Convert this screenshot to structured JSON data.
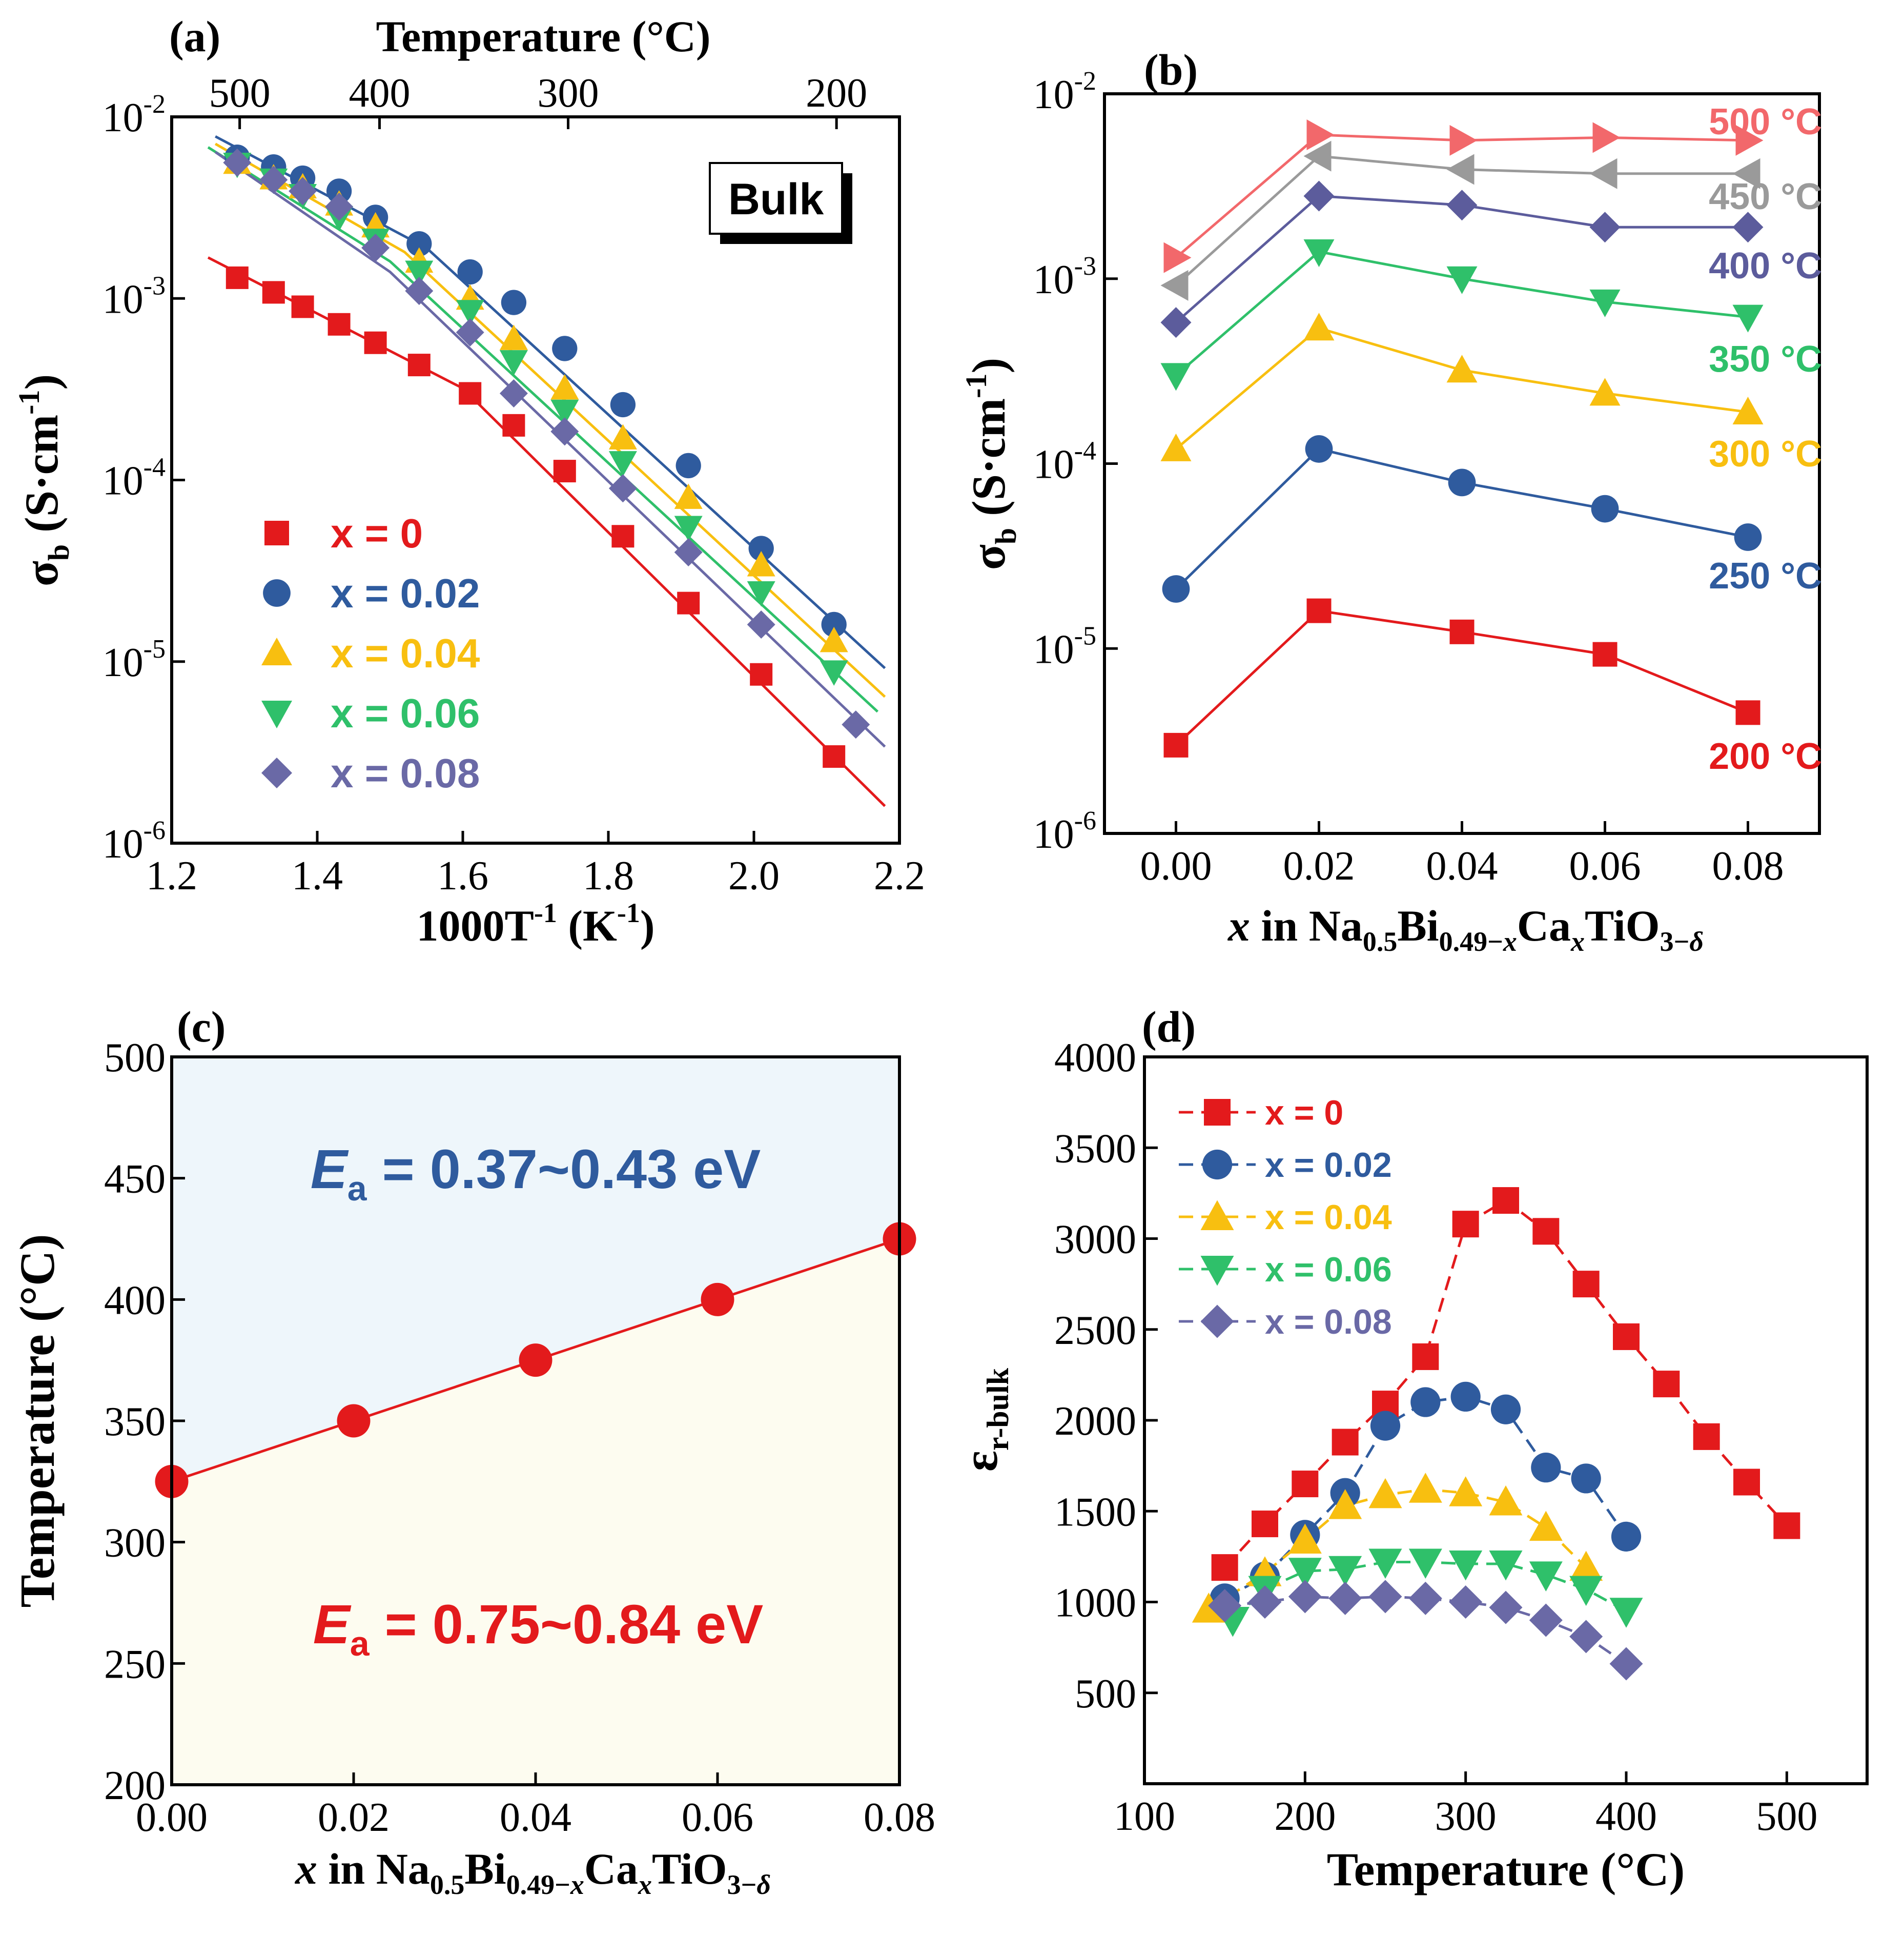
{
  "colors": {
    "x0": "#e31a1c",
    "x002": "#2f5b9e",
    "x004": "#f8bf10",
    "x006": "#2fc06a",
    "x008": "#6a69a6",
    "t500": "#f2686b",
    "t450": "#9a9a9a",
    "t400": "#5c5c9c",
    "t350": "#2fc06a",
    "t300": "#f8bf10",
    "t250": "#2f5b9e",
    "t200": "#e31a1c",
    "region_top": "#eef6fb",
    "region_bottom": "#fdfcf0",
    "ea_top": "#2f5b9e",
    "ea_bottom": "#e31a1c",
    "axis": "#000000"
  },
  "chart_data": [
    {
      "panel": "(a)",
      "type": "scatter",
      "xlabel": "1000T",
      "xlabel_sup": "-1",
      "xlabel_tail": " (K",
      "xlabel_sup2": "-1",
      "xlabel_close": ")",
      "ylabel": "σ",
      "ylabel_sub": "b",
      "ylabel_tail": " (S·cm",
      "ylabel_sup": "-1",
      "ylabel_close": ")",
      "top_axis_title": "Temperature (°C)",
      "top_ticks": [
        500,
        400,
        300,
        200
      ],
      "xlim": [
        1.2,
        2.2
      ],
      "xticks": [
        "1.2",
        "1.4",
        "1.6",
        "1.8",
        "2.0",
        "2.2"
      ],
      "yscale": "log",
      "ylim_exp": [
        -6,
        -2
      ],
      "yticks_exp": [
        "-6",
        "-5",
        "-4",
        "-3",
        "-2"
      ],
      "inset_label": "Bulk",
      "series": [
        {
          "name": "x = 0",
          "marker": "square",
          "color_key": "x0",
          "x": [
            1.29,
            1.34,
            1.38,
            1.43,
            1.48,
            1.54,
            1.61,
            1.67,
            1.74,
            1.82,
            1.91,
            2.01,
            2.11
          ],
          "y": [
            0.0013,
            0.00108,
            0.0009,
            0.00072,
            0.00057,
            0.00043,
            0.0003,
            0.0002,
            0.000112,
            4.9e-05,
            2.1e-05,
            8.5e-06,
            3e-06
          ],
          "fit_x": [
            1.25,
            1.6,
            2.18
          ],
          "fit_y": [
            0.00168,
            0.00032,
            1.6e-06
          ]
        },
        {
          "name": "x = 0.02",
          "marker": "circle",
          "color_key": "x002",
          "x": [
            1.29,
            1.34,
            1.38,
            1.43,
            1.48,
            1.54,
            1.61,
            1.67,
            1.74,
            1.82,
            1.91,
            2.01,
            2.11
          ],
          "y": [
            0.006,
            0.0053,
            0.0046,
            0.0039,
            0.0028,
            0.002,
            0.0014,
            0.00095,
            0.00053,
            0.00026,
            0.00012,
            4.2e-05,
            1.6e-05
          ],
          "fit_x": [
            1.26,
            1.55,
            2.18
          ],
          "fit_y": [
            0.0078,
            0.0019,
            9.2e-06
          ]
        },
        {
          "name": "x = 0.04",
          "marker": "triangle-up",
          "color_key": "x004",
          "x": [
            1.29,
            1.34,
            1.38,
            1.43,
            1.48,
            1.54,
            1.61,
            1.67,
            1.74,
            1.82,
            1.91,
            2.01,
            2.11
          ],
          "y": [
            0.0056,
            0.0046,
            0.0041,
            0.0033,
            0.0025,
            0.0016,
            0.001,
            0.0006,
            0.00032,
            0.00017,
            8e-05,
            3.4e-05,
            1.3e-05
          ],
          "fit_x": [
            1.26,
            1.52,
            2.18
          ],
          "fit_y": [
            0.0071,
            0.0018,
            6.4e-06
          ]
        },
        {
          "name": "x = 0.06",
          "marker": "triangle-down",
          "color_key": "x006",
          "x": [
            1.29,
            1.34,
            1.38,
            1.43,
            1.48,
            1.54,
            1.61,
            1.67,
            1.74,
            1.82,
            1.91,
            2.01,
            2.11
          ],
          "y": [
            0.0055,
            0.0045,
            0.0037,
            0.0028,
            0.0021,
            0.0014,
            0.00085,
            0.00045,
            0.00024,
            0.000125,
            5.5e-05,
            2.4e-05,
            8.8e-06
          ],
          "fit_x": [
            1.25,
            1.5,
            2.17
          ],
          "fit_y": [
            0.0068,
            0.0016,
            5.3e-06
          ]
        },
        {
          "name": "x = 0.08",
          "marker": "diamond",
          "color_key": "x008",
          "x": [
            1.29,
            1.34,
            1.38,
            1.43,
            1.48,
            1.54,
            1.61,
            1.67,
            1.74,
            1.82,
            1.91,
            2.01,
            2.14
          ],
          "y": [
            0.0056,
            0.0045,
            0.0039,
            0.0032,
            0.0019,
            0.0011,
            0.00065,
            0.0003,
            0.000185,
            9e-05,
            4e-05,
            1.6e-05,
            4.5e-06
          ],
          "fit_x": [
            1.26,
            1.5,
            2.18
          ],
          "fit_y": [
            0.0064,
            0.0014,
            3.4e-06
          ]
        }
      ]
    },
    {
      "panel": "(b)",
      "type": "line",
      "ylabel": "σ",
      "ylabel_sub": "b",
      "ylabel_tail": " (S·cm",
      "ylabel_sup": "-1",
      "ylabel_close": ")",
      "x": [
        0,
        0.02,
        0.04,
        0.06,
        0.08
      ],
      "xticks": [
        "0.00",
        "0.02",
        "0.04",
        "0.06",
        "0.08"
      ],
      "xlim": [
        -0.01,
        0.09
      ],
      "yscale": "log",
      "ylim_exp": [
        -6,
        -2
      ],
      "yticks_exp": [
        "-6",
        "-5",
        "-4",
        "-3",
        "-2"
      ],
      "series": [
        {
          "name": "500 °C",
          "marker": "triangle-right",
          "color_key": "t500",
          "values": [
            0.0013,
            0.006,
            0.0056,
            0.0058,
            0.0056
          ]
        },
        {
          "name": "450 °C",
          "marker": "triangle-left",
          "color_key": "t450",
          "values": [
            0.00092,
            0.0046,
            0.0039,
            0.0037,
            0.0037
          ]
        },
        {
          "name": "400 °C",
          "marker": "diamond",
          "color_key": "t400",
          "values": [
            0.00058,
            0.0028,
            0.0025,
            0.0019,
            0.0019
          ]
        },
        {
          "name": "350 °C",
          "marker": "triangle-down",
          "color_key": "t350",
          "values": [
            0.0003,
            0.0014,
            0.001,
            0.00075,
            0.00062
          ]
        },
        {
          "name": "300 °C",
          "marker": "triangle-up",
          "color_key": "t300",
          "values": [
            0.00012,
            0.00054,
            0.00032,
            0.00024,
            0.00019
          ]
        },
        {
          "name": "250 °C",
          "marker": "circle",
          "color_key": "t250",
          "values": [
            2.1e-05,
            0.00012,
            7.9e-05,
            5.7e-05,
            4e-05
          ]
        },
        {
          "name": "200 °C",
          "marker": "square",
          "color_key": "t200",
          "values": [
            3e-06,
            1.6e-05,
            1.23e-05,
            9.3e-06,
            4.5e-06
          ]
        }
      ]
    },
    {
      "panel": "(c)",
      "type": "line",
      "ylabel": "Temperature (°C)",
      "xlim": [
        0,
        0.08
      ],
      "xticks": [
        "0.00",
        "0.02",
        "0.04",
        "0.06",
        "0.08"
      ],
      "ylim": [
        200,
        500
      ],
      "yticks": [
        "200",
        "250",
        "300",
        "350",
        "400",
        "450",
        "500"
      ],
      "x": [
        0,
        0.02,
        0.04,
        0.06,
        0.08
      ],
      "values": [
        325,
        350,
        375,
        400,
        425
      ],
      "fit_line": [
        325,
        425
      ],
      "ea_top": {
        "sym": "E",
        "sub": "a",
        "text": " = 0.37~0.43 eV"
      },
      "ea_bottom": {
        "sym": "E",
        "sub": "a",
        "text": " = 0.75~0.84 eV"
      }
    },
    {
      "panel": "(d)",
      "type": "line",
      "xlabel": "Temperature (°C)",
      "ylabel": "ε",
      "ylabel_sub": "r-bulk",
      "xlim": [
        100,
        550
      ],
      "xticks": [
        "100",
        "200",
        "300",
        "400",
        "500"
      ],
      "ylim": [
        0,
        4000
      ],
      "yticks": [
        "500",
        "1000",
        "1500",
        "2000",
        "2500",
        "3000",
        "3500",
        "4000"
      ],
      "series": [
        {
          "name": "x = 0",
          "marker": "square",
          "color_key": "x0",
          "x": [
            150,
            175,
            200,
            225,
            250,
            275,
            300,
            325,
            350,
            375,
            400,
            425,
            450,
            475,
            500
          ],
          "y": [
            1190,
            1430,
            1650,
            1880,
            2090,
            2350,
            3080,
            3210,
            3040,
            2750,
            2460,
            2200,
            1910,
            1660,
            1420
          ]
        },
        {
          "name": "x = 0.02",
          "marker": "circle",
          "color_key": "x002",
          "x": [
            150,
            175,
            200,
            225,
            250,
            275,
            300,
            325,
            350,
            375,
            400
          ],
          "y": [
            1020,
            1140,
            1370,
            1600,
            1970,
            2100,
            2130,
            2060,
            1740,
            1680,
            1360
          ]
        },
        {
          "name": "x = 0.04",
          "marker": "triangle-up",
          "color_key": "x004",
          "x": [
            140,
            175,
            200,
            225,
            250,
            275,
            300,
            325,
            350,
            375
          ],
          "y": [
            960,
            1160,
            1340,
            1530,
            1590,
            1620,
            1600,
            1550,
            1410,
            1190
          ]
        },
        {
          "name": "x = 0.06",
          "marker": "triangle-down",
          "color_key": "x006",
          "x": [
            155,
            175,
            200,
            225,
            250,
            275,
            300,
            325,
            350,
            375,
            400
          ],
          "y": [
            900,
            1070,
            1170,
            1180,
            1220,
            1220,
            1210,
            1210,
            1150,
            1070,
            950
          ]
        },
        {
          "name": "x = 0.08",
          "marker": "diamond",
          "color_key": "x008",
          "x": [
            150,
            175,
            200,
            225,
            250,
            275,
            300,
            325,
            350,
            375,
            400
          ],
          "y": [
            980,
            1000,
            1030,
            1020,
            1030,
            1020,
            1000,
            970,
            900,
            810,
            660
          ]
        }
      ]
    }
  ],
  "shared_xlabel": {
    "x": "x",
    "in": " in Na",
    "s1": "0.5",
    "b": "Bi",
    "s2": "0.49−",
    "s2x": "x",
    "c": "Ca",
    "s3": "x",
    "t": "TiO",
    "s4": "3−",
    "s4d": "δ"
  }
}
